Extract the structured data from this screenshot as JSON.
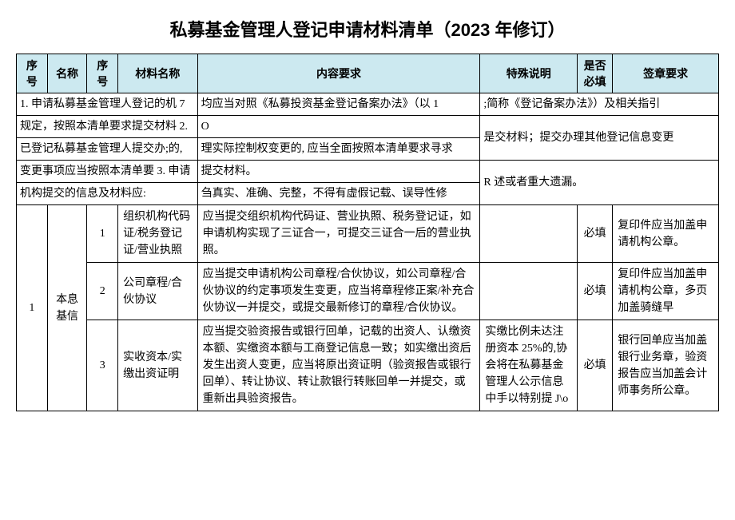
{
  "title": "私募基金管理人登记申请材料清单（2023 年修订）",
  "headers": {
    "c1": "序号",
    "c2": "名称",
    "c3": "序号",
    "c4": "材料名称",
    "c5": "内容要求",
    "c6": "特殊说明",
    "c7": "是否必填",
    "c8": "签章要求"
  },
  "intro": {
    "a1": "1. 申请私募基金管理人登记的机 7",
    "a2": "均应当对照《私募投资基金登记备案办法》（以 1",
    "a3": ";简称《登记备案办法》）及相关指引",
    "b1": "规定，按照本清单要求提交材料 2.",
    "b2": "O",
    "c1": "已登记私募基金管理人提交办;的,",
    "c2": "理实际控制权变更的, 应当全面按照本清单要求寻求",
    "c3": "是交材料；提交办理其他登记信息变更",
    "d1": "变更事项应当按照本清单要 3. 申请",
    "d2": "提交材料。",
    "e1": "机构提交的信息及材料应:",
    "e2": "刍真实、准确、完整，不得有虚假记载、误导性修",
    "e3": "R 述或者重大遗漏。"
  },
  "group": {
    "num": "1",
    "name": "本息基信"
  },
  "rows": [
    {
      "sub": "1",
      "material": "组织机构代码证/税务登记证/营业执照",
      "content": "应当提交组织机构代码证、营业执照、税务登记证，如申请机构实现了三证合一，可提交三证合一后的营业执照。",
      "special": "",
      "required": "必填",
      "stamp": "复印件应当加盖申请机构公章。"
    },
    {
      "sub": "2",
      "material": "公司章程/合伙协议",
      "content": "应当提交申请机构公司章程/合伙协议，如公司章程/合伙协议的约定事项发生变更，应当将章程修正案/补充合伙协议一并提交，或提交最新修订的章程/合伙协议。",
      "special": "",
      "required": "必填",
      "stamp": "复印件应当加盖申请机构公章，多页加盖骑缝早"
    },
    {
      "sub": "3",
      "material": "实收资本/实缴出资证明",
      "content": "应当提交验资报告或银行回单，记载的出资人、认缴资本额、实缴资本额与工商登记信息一致；如实缴出资后发生出资人变更，应当将原出资证明（验资报告或银行回单）、转让协议、转让款银行转账回单一并提交，或重新出具验资报告。",
      "special": "实缴比例未达注册资本 25%的,协会将在私募基金管理人公示信息中手以特别提 J\\o",
      "required": "必填",
      "stamp": "银行回单应当加盖银行业务章，验资报告应当加盖会计师事务所公章。"
    }
  ]
}
